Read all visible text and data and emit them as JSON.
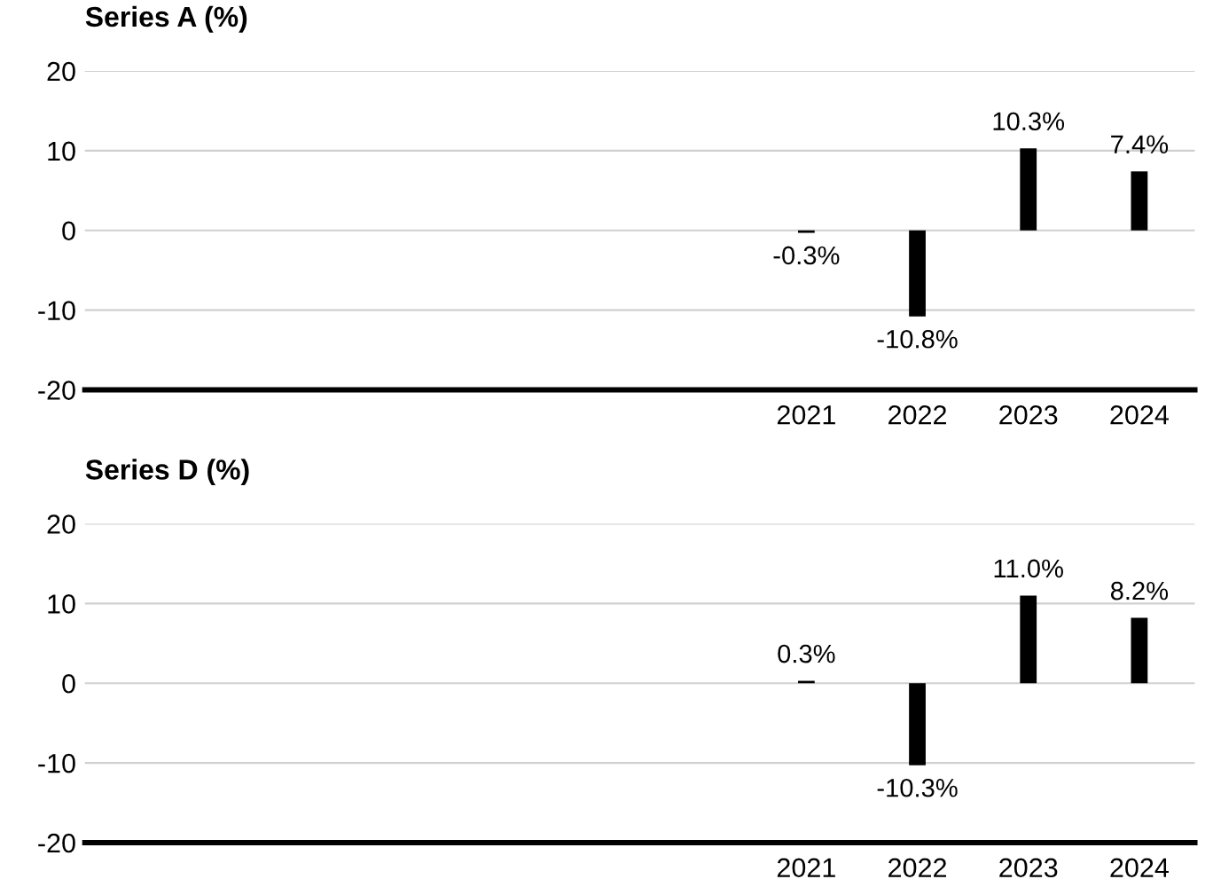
{
  "chart_data": [
    {
      "type": "bar",
      "title": "Series A (%)",
      "categories": [
        null,
        null,
        null,
        null,
        null,
        null,
        "2021",
        "2022",
        "2023",
        "2024"
      ],
      "values": [
        null,
        null,
        null,
        null,
        null,
        null,
        -0.3,
        -10.8,
        10.3,
        7.4
      ],
      "value_labels": [
        null,
        null,
        null,
        null,
        null,
        null,
        "-0.3%",
        "-10.8%",
        "10.3%",
        "7.4%"
      ],
      "color": "#000000",
      "ylim": [
        -20,
        20
      ],
      "yticks": [
        -20,
        -10,
        0,
        10,
        20
      ],
      "grid": "y"
    },
    {
      "type": "bar",
      "title": "Series D (%)",
      "categories": [
        null,
        null,
        null,
        null,
        null,
        null,
        "2021",
        "2022",
        "2023",
        "2024"
      ],
      "values": [
        null,
        null,
        null,
        null,
        null,
        null,
        0.3,
        -10.3,
        11.0,
        8.2
      ],
      "value_labels": [
        null,
        null,
        null,
        null,
        null,
        null,
        "0.3%",
        "-10.3%",
        "11.0%",
        "8.2%"
      ],
      "color": "#000000",
      "ylim": [
        -20,
        20
      ],
      "yticks": [
        -20,
        -10,
        0,
        10,
        20
      ],
      "grid": "y"
    }
  ]
}
